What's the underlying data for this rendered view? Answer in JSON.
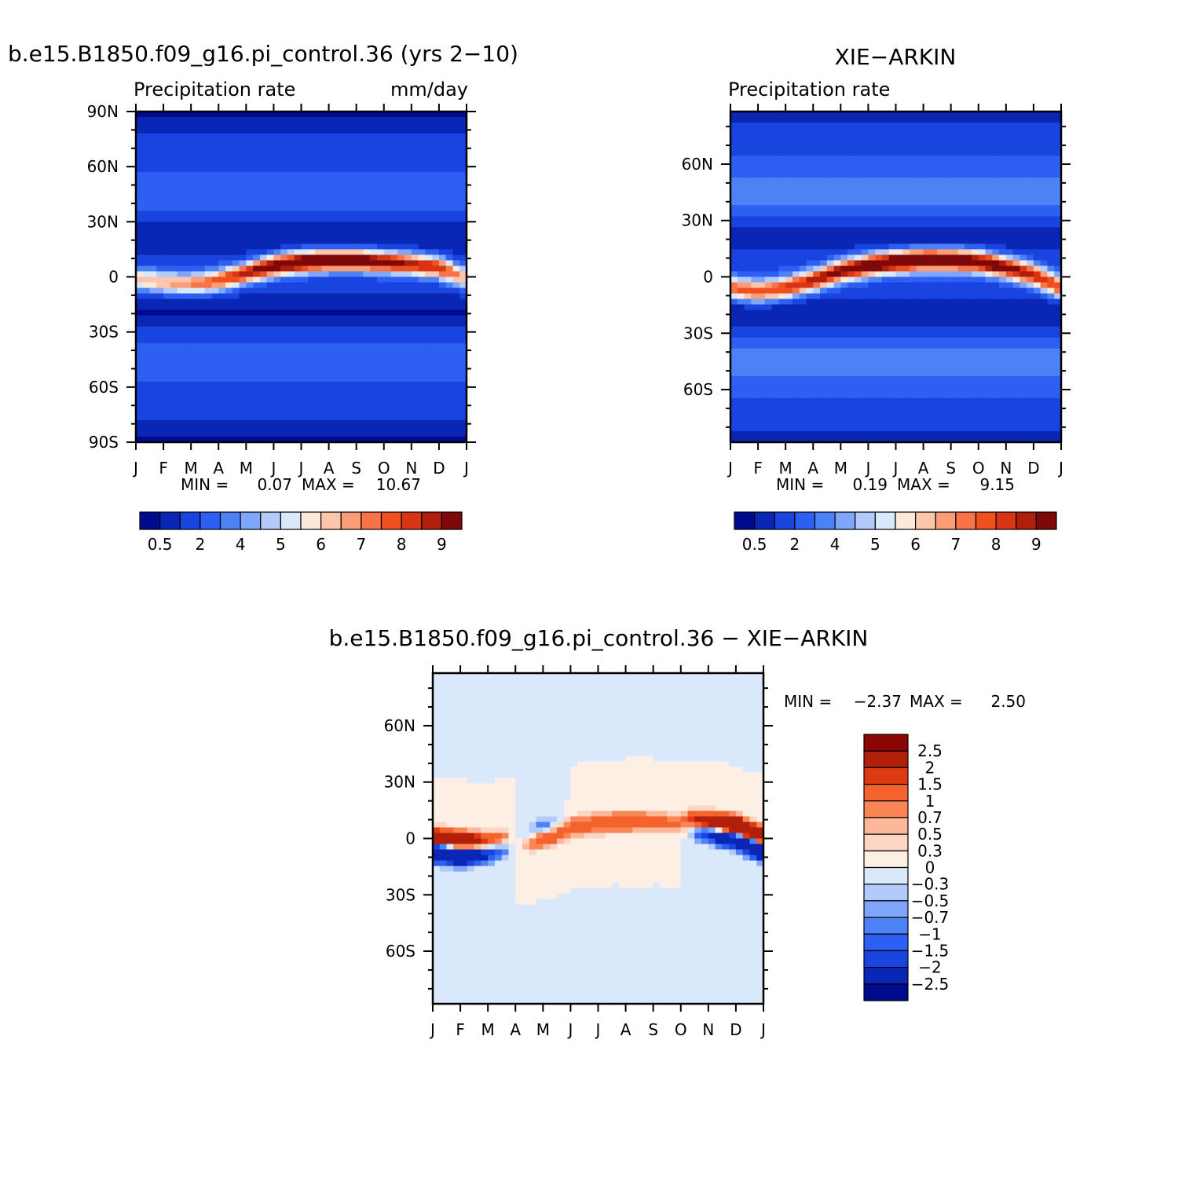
{
  "figure": {
    "left_title": "b.e15.B1850.f09_g16.pi_control.36 (yrs 2-10)",
    "right_title": "XIE-ARKIN",
    "bottom_title": "b.e15.B1850.f09_g16.pi_control.36 - XIE-ARKIN"
  },
  "colors": {
    "field_scale": [
      "#000a8c",
      "#0a26b4",
      "#1944e0",
      "#2d5ff2",
      "#4d82f7",
      "#7fa6fa",
      "#b3cbfb",
      "#dae8fc",
      "#fde9da",
      "#fcc6ac",
      "#fb9e77",
      "#f87448",
      "#f04f1e",
      "#d93514",
      "#b11f0c",
      "#7f0808"
    ],
    "diff_scale": [
      "#000a8c",
      "#0a26b4",
      "#1944e0",
      "#2d5ff2",
      "#4d82f7",
      "#7fa6fa",
      "#b3cbfb",
      "#dae8fc",
      "#fdefe4",
      "#fdd6c3",
      "#fcb898",
      "#fa8655",
      "#f4622d",
      "#de3a12",
      "#b21f0b",
      "#8c0606"
    ]
  },
  "chart_data": [
    {
      "id": "model",
      "type": "heatmap",
      "title": "b.e15.B1850.f09_g16.pi_control.36 (yrs 2-10)",
      "subtitle_left": "Precipitation rate",
      "subtitle_right": "mm/day",
      "x_ticklabels": [
        "J",
        "F",
        "M",
        "A",
        "M",
        "J",
        "J",
        "A",
        "S",
        "O",
        "N",
        "D",
        "J"
      ],
      "y_ticklabels": [
        "90N",
        "60N",
        "30N",
        "0",
        "30S",
        "60S",
        "90S"
      ],
      "y_tickvalues": [
        90,
        60,
        30,
        0,
        -30,
        -60,
        -90
      ],
      "ylim": [
        -90,
        90
      ],
      "stats": {
        "min_label": "MIN =",
        "min": "0.07",
        "max_label": "MAX =",
        "max": "10.67"
      },
      "colorbar_labels": [
        "0.5",
        "2",
        "4",
        "5",
        "6",
        "7",
        "8",
        "9"
      ],
      "colorbar_label_positions": [
        1,
        3,
        5,
        7,
        9,
        11,
        13,
        15
      ],
      "field": {
        "max_value": 10.67,
        "itcz_amplitude": [
          4.8,
          5.2,
          6.0,
          6.8,
          8.2,
          9.6,
          10.4,
          10.67,
          10.0,
          9.2,
          8.4,
          7.8
        ],
        "itcz_latitude": [
          -1,
          -3,
          -4,
          -2,
          2,
          6,
          8,
          9,
          9,
          8,
          7,
          5
        ]
      }
    },
    {
      "id": "obs",
      "type": "heatmap",
      "title": "XIE-ARKIN",
      "subtitle_left": "Precipitation rate",
      "x_ticklabels": [
        "J",
        "F",
        "M",
        "A",
        "M",
        "J",
        "J",
        "A",
        "S",
        "O",
        "N",
        "D",
        "J"
      ],
      "y_ticklabels": [
        "60N",
        "30N",
        "0",
        "30S",
        "60S"
      ],
      "y_tickvalues": [
        60,
        30,
        0,
        -30,
        -60
      ],
      "ylim": [
        -88,
        88
      ],
      "stats": {
        "min_label": "MIN =",
        "min": "0.19",
        "max_label": "MAX =",
        "max": "9.15"
      },
      "colorbar_labels": [
        "0.5",
        "2",
        "4",
        "5",
        "6",
        "7",
        "8",
        "9"
      ],
      "colorbar_label_positions": [
        1,
        3,
        5,
        7,
        9,
        11,
        13,
        15
      ],
      "field": {
        "max_value": 9.15,
        "itcz_amplitude": [
          5.6,
          5.8,
          6.2,
          6.8,
          7.6,
          8.4,
          9.0,
          9.15,
          8.8,
          8.2,
          7.6,
          6.8
        ],
        "itcz_latitude": [
          -6,
          -8,
          -6,
          -2,
          3,
          6,
          8,
          9,
          9,
          8,
          5,
          1
        ]
      }
    },
    {
      "id": "diff",
      "type": "heatmap",
      "title": "b.e15.B1850.f09_g16.pi_control.36 - XIE-ARKIN",
      "x_ticklabels": [
        "J",
        "F",
        "M",
        "A",
        "M",
        "J",
        "J",
        "A",
        "S",
        "O",
        "N",
        "D",
        "J"
      ],
      "y_ticklabels": [
        "60N",
        "30N",
        "0",
        "30S",
        "60S"
      ],
      "y_tickvalues": [
        60,
        30,
        0,
        -30,
        -60
      ],
      "ylim": [
        -88,
        88
      ],
      "stats": {
        "min_label": "MIN =",
        "min": "-2.37",
        "max_label": "MAX =",
        "max": "2.50"
      },
      "colorbar_labels": [
        "2.5",
        "2",
        "1.5",
        "1",
        "0.7",
        "0.5",
        "0.3",
        "0",
        "-0.3",
        "-0.5",
        "-0.7",
        "-1",
        "-1.5",
        "-2",
        "-2.5"
      ],
      "colorbar_levels": [
        2.5,
        2,
        1.5,
        1,
        0.7,
        0.5,
        0.3,
        0,
        -0.3,
        -0.5,
        -0.7,
        -1,
        -1.5,
        -2,
        -2.5
      ],
      "field": {
        "min_value": -2.37,
        "max_value": 2.5
      }
    }
  ]
}
